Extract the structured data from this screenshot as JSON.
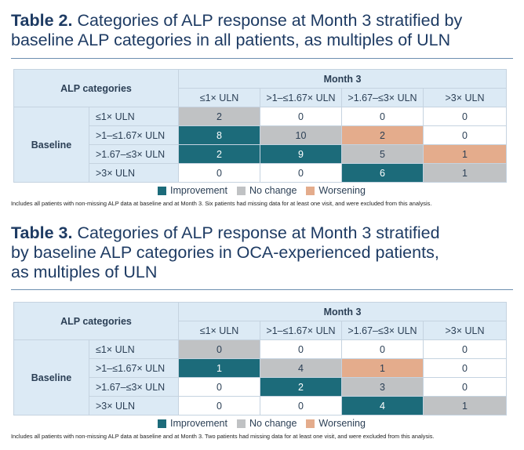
{
  "table2": {
    "title_bold": "Table 2.",
    "title_rest": " Categories of ALP response at Month 3 stratified by baseline ALP categories in all patients, as multiples of ULN",
    "corner_label": "ALP categories",
    "month_label": "Month 3",
    "baseline_label": "Baseline",
    "columns": [
      "≤1× ULN",
      ">1–≤1.67× ULN",
      ">1.67–≤3× ULN",
      ">3× ULN"
    ],
    "rows": [
      {
        "label": "≤1× ULN",
        "cells": [
          {
            "v": "2",
            "c": "nochange"
          },
          {
            "v": "0",
            "c": "plain"
          },
          {
            "v": "0",
            "c": "plain"
          },
          {
            "v": "0",
            "c": "plain"
          }
        ]
      },
      {
        "label": ">1–≤1.67× ULN",
        "cells": [
          {
            "v": "8",
            "c": "improve"
          },
          {
            "v": "10",
            "c": "nochange"
          },
          {
            "v": "2",
            "c": "worsen"
          },
          {
            "v": "0",
            "c": "plain"
          }
        ]
      },
      {
        "label": ">1.67–≤3× ULN",
        "cells": [
          {
            "v": "2",
            "c": "improve"
          },
          {
            "v": "9",
            "c": "improve"
          },
          {
            "v": "5",
            "c": "nochange"
          },
          {
            "v": "1",
            "c": "worsen"
          }
        ]
      },
      {
        "label": ">3× ULN",
        "cells": [
          {
            "v": "0",
            "c": "plain"
          },
          {
            "v": "0",
            "c": "plain"
          },
          {
            "v": "6",
            "c": "improve"
          },
          {
            "v": "1",
            "c": "nochange"
          }
        ]
      }
    ],
    "footnote": "Includes all patients with non-missing ALP data at baseline and at Month 3. Six patients had missing data for at least one visit, and were excluded from this analysis."
  },
  "table3": {
    "title_bold": "Table 3.",
    "title_line1": " Categories of ALP response at Month 3 stratified",
    "title_line2": "by baseline ALP categories in OCA-experienced patients,",
    "title_line3": "as multiples of ULN",
    "corner_label": "ALP categories",
    "month_label": "Month 3",
    "baseline_label": "Baseline",
    "columns": [
      "≤1× ULN",
      ">1–≤1.67× ULN",
      ">1.67–≤3× ULN",
      ">3× ULN"
    ],
    "rows": [
      {
        "label": "≤1× ULN",
        "cells": [
          {
            "v": "0",
            "c": "nochange"
          },
          {
            "v": "0",
            "c": "plain"
          },
          {
            "v": "0",
            "c": "plain"
          },
          {
            "v": "0",
            "c": "plain"
          }
        ]
      },
      {
        "label": ">1–≤1.67× ULN",
        "cells": [
          {
            "v": "1",
            "c": "improve"
          },
          {
            "v": "4",
            "c": "nochange"
          },
          {
            "v": "1",
            "c": "worsen"
          },
          {
            "v": "0",
            "c": "plain"
          }
        ]
      },
      {
        "label": ">1.67–≤3× ULN",
        "cells": [
          {
            "v": "0",
            "c": "plain"
          },
          {
            "v": "2",
            "c": "improve"
          },
          {
            "v": "3",
            "c": "nochange"
          },
          {
            "v": "0",
            "c": "plain"
          }
        ]
      },
      {
        "label": ">3× ULN",
        "cells": [
          {
            "v": "0",
            "c": "plain"
          },
          {
            "v": "0",
            "c": "plain"
          },
          {
            "v": "4",
            "c": "improve"
          },
          {
            "v": "1",
            "c": "nochange"
          }
        ]
      }
    ],
    "footnote": "Includes all patients with non-missing ALP data at baseline and at Month 3. Two patients had missing data for at least one visit, and were excluded from this analysis."
  },
  "legend": {
    "improvement": "Improvement",
    "no_change": "No change",
    "worsening": "Worsening"
  },
  "colors": {
    "improvement": "#1c6b7a",
    "no_change": "#c0c2c4",
    "worsening": "#e4ac8c",
    "header_bg": "#dceaf5",
    "title": "#1e3b63"
  }
}
